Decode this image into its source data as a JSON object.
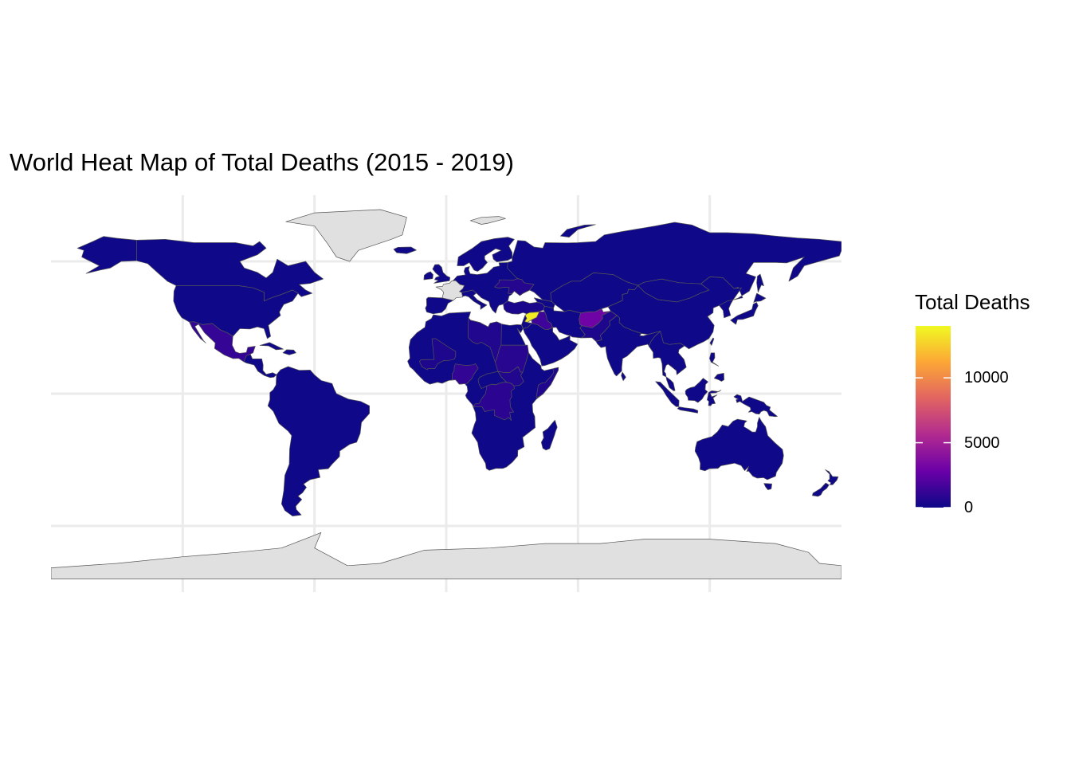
{
  "title": "World Heat Map of Total Deaths (2015 - 2019)",
  "legend": {
    "title": "Total Deaths",
    "ticks": [
      {
        "value": 0,
        "label": "0"
      },
      {
        "value": 5000,
        "label": "5000"
      },
      {
        "value": 10000,
        "label": "10000"
      }
    ],
    "range": [
      0,
      14000
    ],
    "palette": "plasma",
    "colors": [
      "#0d0887",
      "#6a00a8",
      "#b12a90",
      "#e16462",
      "#fca636",
      "#f0f921"
    ]
  },
  "map": {
    "projection": "equirectangular",
    "no_data_color": "#e0e0e0",
    "border_color": "#555555",
    "grid_color": "#ebebeb",
    "background": "#ffffff"
  },
  "chart_data": {
    "type": "heatmap",
    "title": "World Heat Map of Total Deaths (2015 - 2019)",
    "legend_title": "Total Deaths",
    "scale": {
      "min": 0,
      "max": 14000,
      "breaks": [
        0,
        5000,
        10000
      ],
      "palette": "plasma"
    },
    "no_data_regions": [
      "Greenland",
      "Antarctica",
      "France",
      "Svalbard"
    ],
    "regions": [
      {
        "name": "Syria",
        "value": 13500
      },
      {
        "name": "Afghanistan",
        "value": 3000
      },
      {
        "name": "Iraq",
        "value": 1500
      },
      {
        "name": "Mexico",
        "value": 1200
      },
      {
        "name": "Nigeria",
        "value": 1100
      },
      {
        "name": "DR Congo",
        "value": 900
      },
      {
        "name": "Sudan",
        "value": 800
      },
      {
        "name": "Ukraine",
        "value": 700
      },
      {
        "name": "Yemen",
        "value": 700
      },
      {
        "name": "Libya",
        "value": 600
      },
      {
        "name": "Somalia",
        "value": 600
      },
      {
        "name": "South Sudan",
        "value": 600
      },
      {
        "name": "Mali",
        "value": 500
      },
      {
        "name": "Central African Republic",
        "value": 500
      },
      {
        "name": "Pakistan",
        "value": 500
      },
      {
        "name": "Turkey",
        "value": 400
      },
      {
        "name": "Other countries",
        "value": 50
      }
    ]
  }
}
